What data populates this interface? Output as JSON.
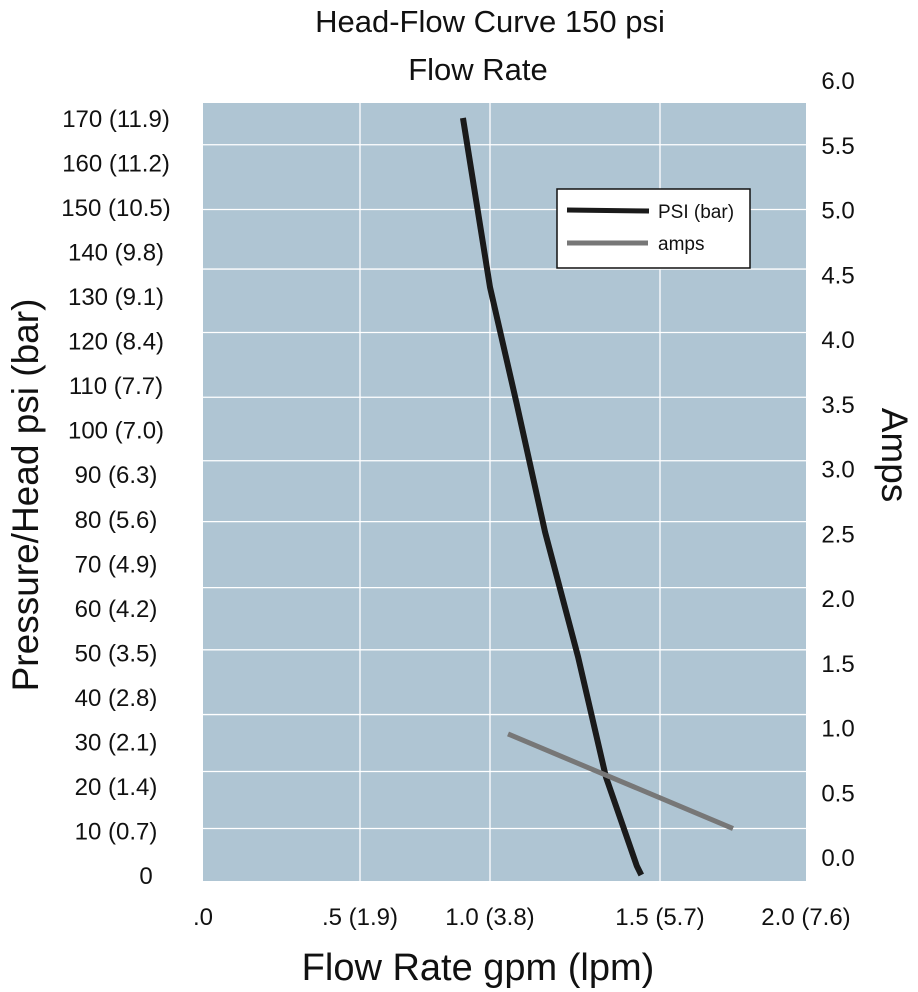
{
  "chart_data": {
    "type": "line",
    "title": "Head-Flow Curve 150 psi",
    "subtitle": "Flow Rate",
    "xlabel": "Flow Rate gpm (lpm)",
    "ylabel": "Pressure/Head psi (bar)",
    "y2label": "Amps",
    "xlim": [
      0,
      2.0
    ],
    "ylim": [
      0,
      170
    ],
    "y2lim": [
      0,
      6.0
    ],
    "x_ticks": [
      {
        "value": 0,
        "label": ".0"
      },
      {
        "value": 0.5,
        "label": ".5 (1.9)"
      },
      {
        "value": 1.0,
        "label": "1.0 (3.8)"
      },
      {
        "value": 1.5,
        "label": "1.5 (5.7)"
      },
      {
        "value": 2.0,
        "label": "2.0 (7.6)"
      }
    ],
    "y_ticks": [
      {
        "value": 170,
        "label": "170 (11.9)"
      },
      {
        "value": 160,
        "label": "160 (11.2)"
      },
      {
        "value": 150,
        "label": "150 (10.5)"
      },
      {
        "value": 140,
        "label": "140 (9.8)"
      },
      {
        "value": 130,
        "label": "130 (9.1)"
      },
      {
        "value": 120,
        "label": "120 (8.4)"
      },
      {
        "value": 110,
        "label": "110 (7.7)"
      },
      {
        "value": 100,
        "label": "100 (7.0)"
      },
      {
        "value": 90,
        "label": "90 (6.3)"
      },
      {
        "value": 80,
        "label": "80 (5.6)"
      },
      {
        "value": 70,
        "label": "70 (4.9)"
      },
      {
        "value": 60,
        "label": "60 (4.2)"
      },
      {
        "value": 50,
        "label": "50 (3.5)"
      },
      {
        "value": 40,
        "label": "40 (2.8)"
      },
      {
        "value": 30,
        "label": "30 (2.1)"
      },
      {
        "value": 20,
        "label": "20 (1.4)"
      },
      {
        "value": 10,
        "label": "10 (0.7)"
      },
      {
        "value": 0,
        "label": "0"
      }
    ],
    "y2_ticks": [
      "6.0",
      "5.5",
      "5.0",
      "4.5",
      "4.0",
      "3.5",
      "3.0",
      "2.5",
      "2.0",
      "1.5",
      "1.0",
      "0.5",
      "0.0"
    ],
    "grid": true,
    "grid_x": [
      0.5,
      1.0,
      1.5
    ],
    "grid_y2": [
      0.22,
      0.66,
      1.1,
      1.6,
      2.08,
      2.59,
      3.06,
      3.55,
      4.05,
      4.54,
      5.0,
      5.5
    ],
    "legend_position": "top-right",
    "series": [
      {
        "name": "PSI (bar)",
        "axis": "left",
        "color": "#1a1a1a",
        "x": [
          0.896,
          1.0,
          1.078,
          1.162,
          1.259,
          1.341,
          1.432,
          1.445
        ],
        "y": [
          170,
          132,
          106,
          77,
          49,
          22,
          2,
          0
        ]
      },
      {
        "name": "amps",
        "axis": "right",
        "color": "#777777",
        "x": [
          1.053,
          1.75
        ],
        "y": [
          0.95,
          0.22
        ]
      }
    ],
    "plot_bg": "#afc5d3"
  }
}
